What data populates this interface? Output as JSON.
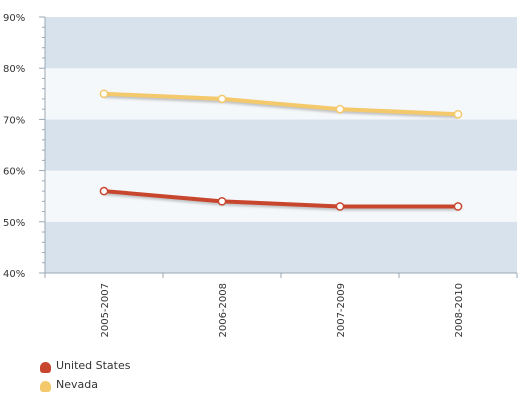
{
  "chart_data": {
    "type": "line",
    "categories": [
      "2005-2007",
      "2006-2008",
      "2007-2009",
      "2008-2010"
    ],
    "y_ticks": [
      "40%",
      "50%",
      "60%",
      "70%",
      "80%",
      "90%"
    ],
    "ylim": [
      40,
      90
    ],
    "y_unit": "%",
    "grid": "horizontal bands",
    "legend_position": "bottom-left",
    "series": [
      {
        "name": "United States",
        "values": [
          56,
          54,
          53,
          53
        ],
        "color": "#c8462e"
      },
      {
        "name": "Nevada",
        "values": [
          75,
          74,
          72,
          71
        ],
        "color": "#f3c96b"
      }
    ],
    "band_colors": [
      "#d8e2ec",
      "#f5f8fb"
    ]
  }
}
